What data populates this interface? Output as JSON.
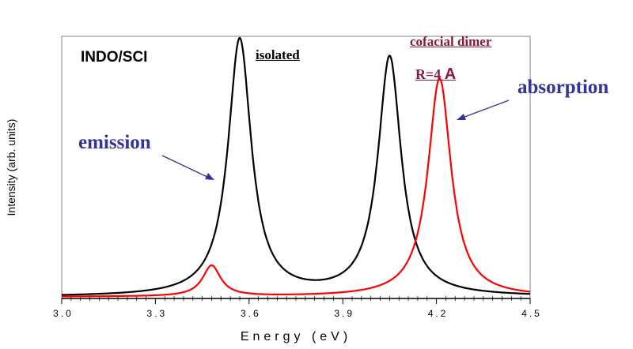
{
  "colors": {
    "isolated": "#000000",
    "dimer": "#ff0000",
    "dimer_label": "#8b1a3a",
    "annotation": "#333399"
  },
  "chart_data": {
    "type": "line",
    "xlabel": "Energy (eV)",
    "ylabel": "Intensity (arb. units)",
    "xlim": [
      3.0,
      4.5
    ],
    "ylim": [
      0,
      1.02
    ],
    "xticks": [
      "3.0",
      "3.3",
      "3.6",
      "3.9",
      "4.2",
      "4.5"
    ],
    "grid": false,
    "series": [
      {
        "name": "isolated",
        "color": "#000000",
        "peaks": [
          {
            "center": 3.57,
            "height": 1.0,
            "hwhm": 0.045
          },
          {
            "center": 4.05,
            "height": 0.93,
            "hwhm": 0.045
          }
        ]
      },
      {
        "name": "cofacial dimer R=4 A",
        "color": "#ff0000",
        "peaks": [
          {
            "center": 3.48,
            "height": 0.12,
            "hwhm": 0.035
          },
          {
            "center": 4.21,
            "height": 0.85,
            "hwhm": 0.045
          }
        ]
      }
    ],
    "annotations": {
      "method": "INDO/SCI",
      "isolated": "isolated",
      "dimer_line1": "cofacial dimer",
      "dimer_line2": "R=4",
      "dimer_unit": "A",
      "emission": "emission",
      "absorption": "absorption"
    }
  }
}
